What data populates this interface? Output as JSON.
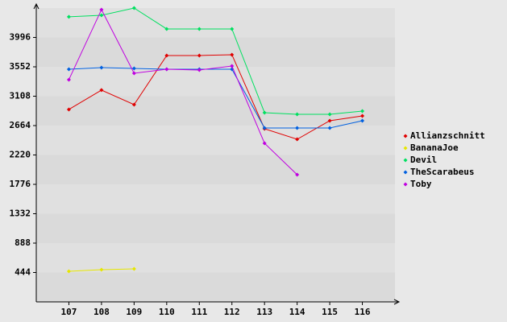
{
  "chart_data": {
    "type": "line",
    "categories": [
      "107",
      "108",
      "109",
      "110",
      "111",
      "112",
      "113",
      "114",
      "115",
      "116"
    ],
    "series": [
      {
        "name": "Allianzschnitt",
        "color": "#e00000",
        "values": [
          2908,
          3200,
          2981,
          3723,
          3723,
          3735,
          2616,
          2457,
          2737,
          2810
        ]
      },
      {
        "name": "BananaJoe",
        "color": "#e6e600",
        "values": [
          462,
          487,
          499,
          null,
          null,
          null,
          null,
          null,
          null,
          null
        ]
      },
      {
        "name": "Devil",
        "color": "#00e060",
        "values": [
          4307,
          4331,
          4440,
          4124,
          4124,
          4124,
          2859,
          2835,
          2835,
          2883
        ]
      },
      {
        "name": "TheScarabeus",
        "color": "#0060e0",
        "values": [
          3516,
          3540,
          3528,
          3516,
          3516,
          3516,
          2628,
          2628,
          2628,
          2737
        ]
      },
      {
        "name": "Toby",
        "color": "#c000e0",
        "values": [
          3358,
          4416,
          3455,
          3516,
          3504,
          3564,
          2397,
          1922,
          null,
          null
        ]
      }
    ],
    "ylim": [
      0,
      4440
    ],
    "yticks": [
      444,
      888,
      1332,
      1776,
      2220,
      2664,
      3108,
      3552,
      3996
    ],
    "legend": "right"
  }
}
